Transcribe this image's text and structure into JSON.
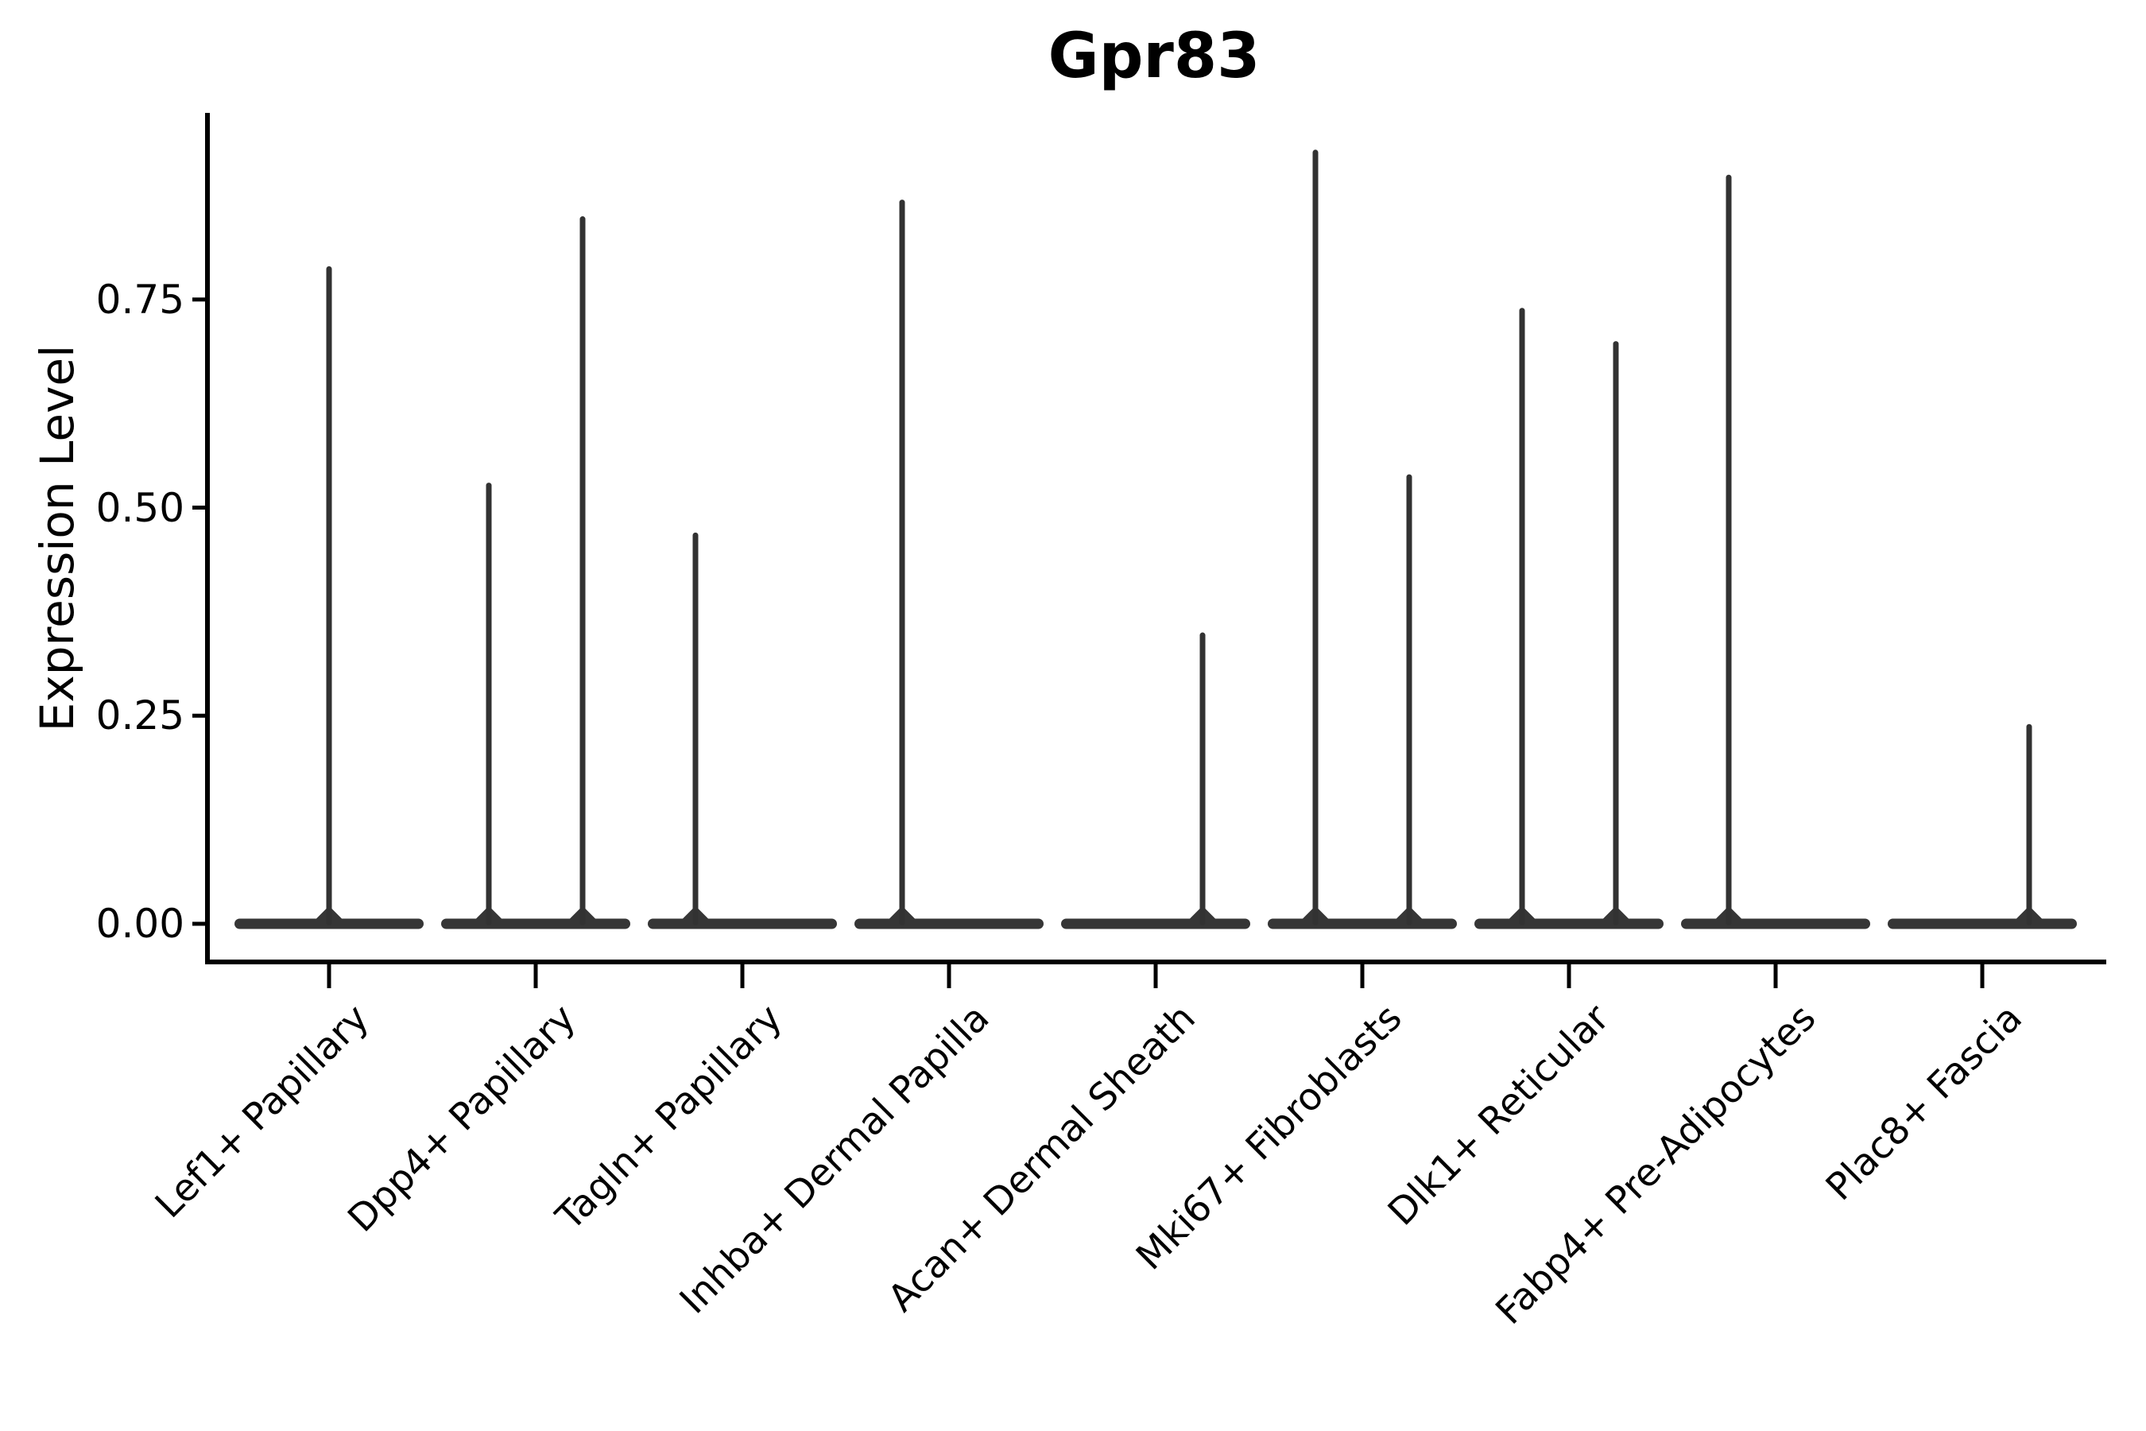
{
  "chart_data": {
    "type": "violin",
    "title": "Gpr83",
    "xlabel": "",
    "ylabel": "Expression Level",
    "ylim": [
      0,
      0.97
    ],
    "y_ticks": [
      0.0,
      0.25,
      0.5,
      0.75
    ],
    "y_tick_labels": [
      "0.00",
      "0.25",
      "0.50",
      "0.75"
    ],
    "grid": false,
    "legend": "none",
    "x_tick_rotation_degrees": 45,
    "description": "Each category shows violin(s) that are flat at expression 0 with a thin vertical tail reaching the max expression value. Categories with two groups show two half-width violins side by side; position indicates left/right dodged violin or a single full-width centered violin. max = 0 means the violin is completely flat at 0 (no spike).",
    "categories": [
      {
        "label": "Lef1+ Papillary",
        "violins": [
          {
            "position": "center",
            "max": 0.79
          }
        ]
      },
      {
        "label": "Dpp4+ Papillary",
        "violins": [
          {
            "position": "left",
            "max": 0.53
          },
          {
            "position": "right",
            "max": 0.85
          }
        ]
      },
      {
        "label": "Tagln+ Papillary",
        "violins": [
          {
            "position": "left",
            "max": 0.47
          },
          {
            "position": "right",
            "max": 0
          }
        ]
      },
      {
        "label": "Inhba+ Dermal Papilla",
        "violins": [
          {
            "position": "left",
            "max": 0.87
          },
          {
            "position": "right",
            "max": 0
          }
        ]
      },
      {
        "label": "Acan+ Dermal Sheath",
        "violins": [
          {
            "position": "left",
            "max": 0
          },
          {
            "position": "right",
            "max": 0.35
          }
        ]
      },
      {
        "label": "Mki67+ Fibroblasts",
        "violins": [
          {
            "position": "left",
            "max": 0.93
          },
          {
            "position": "right",
            "max": 0.54
          }
        ]
      },
      {
        "label": "Dlk1+ Reticular",
        "violins": [
          {
            "position": "left",
            "max": 0.74
          },
          {
            "position": "right",
            "max": 0.7
          }
        ]
      },
      {
        "label": "Fabp4+ Pre-Adipocytes",
        "violins": [
          {
            "position": "left",
            "max": 0.9
          },
          {
            "position": "right",
            "max": 0
          }
        ]
      },
      {
        "label": "Plac8+ Fascia",
        "violins": [
          {
            "position": "left",
            "max": 0
          },
          {
            "position": "right",
            "max": 0.24
          }
        ]
      }
    ],
    "colors": {
      "background": "#ffffff",
      "axis": "#000000",
      "text": "#000000",
      "violin": "#363636",
      "violin_spike": "#323232"
    }
  }
}
